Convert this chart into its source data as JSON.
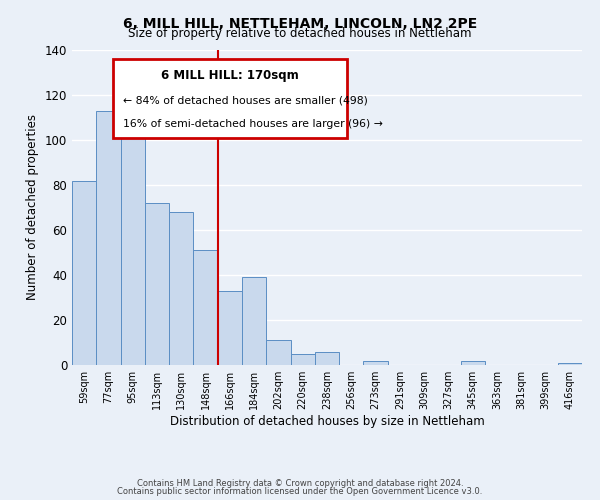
{
  "title": "6, MILL HILL, NETTLEHAM, LINCOLN, LN2 2PE",
  "subtitle": "Size of property relative to detached houses in Nettleham",
  "xlabel": "Distribution of detached houses by size in Nettleham",
  "ylabel": "Number of detached properties",
  "bar_heights": [
    82,
    113,
    109,
    72,
    68,
    51,
    33,
    39,
    11,
    5,
    6,
    0,
    2,
    0,
    0,
    0,
    2,
    0,
    0,
    0,
    1
  ],
  "all_labels": [
    "59sqm",
    "77sqm",
    "95sqm",
    "113sqm",
    "130sqm",
    "148sqm",
    "166sqm",
    "184sqm",
    "202sqm",
    "220sqm",
    "238sqm",
    "256sqm",
    "273sqm",
    "291sqm",
    "309sqm",
    "327sqm",
    "345sqm",
    "363sqm",
    "381sqm",
    "399sqm",
    "416sqm"
  ],
  "bar_color": "#c9d9ed",
  "bar_edge_color": "#5b8ec4",
  "background_color": "#eaf0f8",
  "plot_bg_color": "#eaf0f8",
  "grid_color": "#ffffff",
  "vline_color": "#cc0000",
  "annotation_box_color": "#cc0000",
  "ylim": [
    0,
    140
  ],
  "yticks": [
    0,
    20,
    40,
    60,
    80,
    100,
    120,
    140
  ],
  "annotation_title": "6 MILL HILL: 170sqm",
  "annotation_line1": "← 84% of detached houses are smaller (498)",
  "annotation_line2": "16% of semi-detached houses are larger (96) →",
  "footer1": "Contains HM Land Registry data © Crown copyright and database right 2024.",
  "footer2": "Contains public sector information licensed under the Open Government Licence v3.0."
}
